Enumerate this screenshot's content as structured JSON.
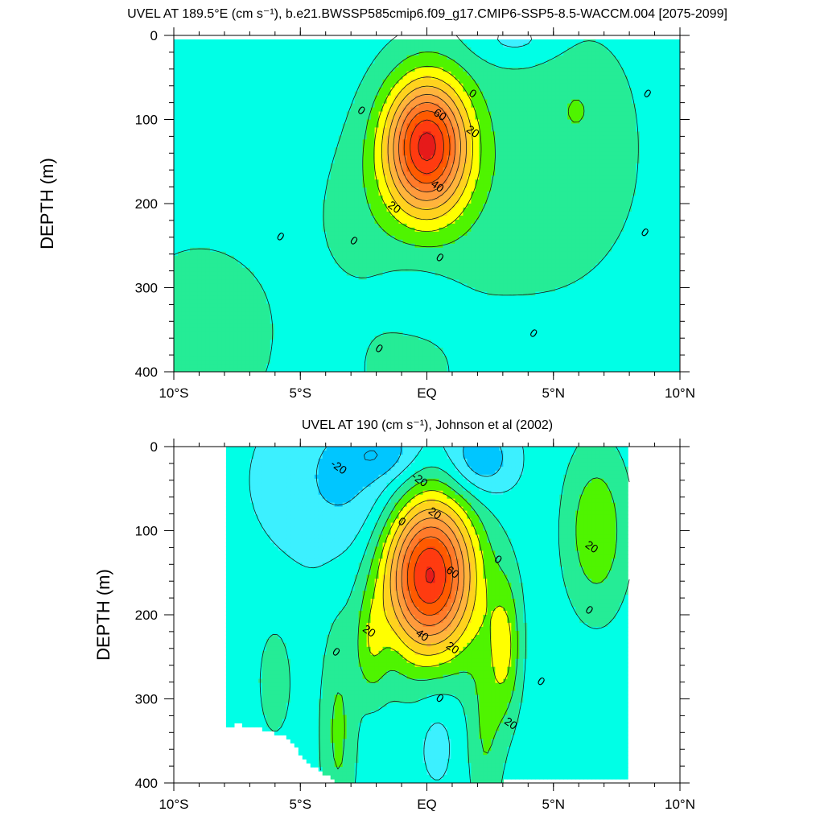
{
  "chart_data": [
    {
      "type": "contour",
      "title": "UVEL AT 189.5°E (cm s⁻¹), b.e21.BWSSP585cmip6.f09_g17.CMIP6-SSP5-8.5-WACCM.004 [2075-2099]",
      "ylabel": "DEPTH (m)",
      "xlabel": "",
      "xlim": [
        -10,
        10
      ],
      "ylim": [
        400,
        0
      ],
      "x_ticks": [
        {
          "v": -10,
          "label": "10°S"
        },
        {
          "v": -5,
          "label": "5°S"
        },
        {
          "v": 0,
          "label": "EQ"
        },
        {
          "v": 5,
          "label": "5°N"
        },
        {
          "v": 10,
          "label": "10°N"
        }
      ],
      "y_ticks": [
        {
          "v": 0,
          "label": "0"
        },
        {
          "v": 100,
          "label": "100"
        },
        {
          "v": 200,
          "label": "200"
        },
        {
          "v": 300,
          "label": "300"
        },
        {
          "v": 400,
          "label": "400"
        }
      ],
      "contour_interval": 10,
      "core": {
        "lat": 0.0,
        "depth": 120,
        "max": 85
      },
      "contour_labels": [
        {
          "lat": -2.6,
          "depth": 90,
          "text": "0"
        },
        {
          "lat": 1.8,
          "depth": 70,
          "text": "0"
        },
        {
          "lat": 8.7,
          "depth": 70,
          "text": "0"
        },
        {
          "lat": 0.5,
          "depth": 95,
          "text": "60"
        },
        {
          "lat": 1.8,
          "depth": 115,
          "text": "20"
        },
        {
          "lat": 0.4,
          "depth": 180,
          "text": "40"
        },
        {
          "lat": -1.3,
          "depth": 205,
          "text": "20"
        },
        {
          "lat": -5.8,
          "depth": 240,
          "text": "0"
        },
        {
          "lat": -2.9,
          "depth": 245,
          "text": "0"
        },
        {
          "lat": 0.5,
          "depth": 265,
          "text": "0"
        },
        {
          "lat": 8.6,
          "depth": 235,
          "text": "0"
        },
        {
          "lat": 4.2,
          "depth": 355,
          "text": "0"
        },
        {
          "lat": -1.9,
          "depth": 373,
          "text": "0"
        }
      ]
    },
    {
      "type": "contour",
      "title": "UVEL AT 190 (cm s⁻¹), Johnson et al (2002)",
      "ylabel": "DEPTH (m)",
      "xlabel": "",
      "xlim": [
        -10,
        10
      ],
      "ylim": [
        400,
        0
      ],
      "x_ticks": [
        {
          "v": -10,
          "label": "10°S"
        },
        {
          "v": -5,
          "label": "5°S"
        },
        {
          "v": 0,
          "label": "EQ"
        },
        {
          "v": 5,
          "label": "5°N"
        },
        {
          "v": 10,
          "label": "10°N"
        }
      ],
      "y_ticks": [
        {
          "v": 0,
          "label": "0"
        },
        {
          "v": 100,
          "label": "100"
        },
        {
          "v": 200,
          "label": "200"
        },
        {
          "v": 300,
          "label": "300"
        },
        {
          "v": 400,
          "label": "400"
        }
      ],
      "contour_interval": 10,
      "data_lat_range": [
        -8,
        8
      ],
      "core": {
        "lat": 0.1,
        "depth": 150,
        "max": 95
      },
      "contour_labels": [
        {
          "lat": -3.5,
          "depth": 25,
          "text": "-20"
        },
        {
          "lat": -0.3,
          "depth": 40,
          "text": "-20"
        },
        {
          "lat": 0.3,
          "depth": 80,
          "text": "20"
        },
        {
          "lat": -1.0,
          "depth": 90,
          "text": "0"
        },
        {
          "lat": 2.8,
          "depth": 135,
          "text": "0"
        },
        {
          "lat": 1.0,
          "depth": 150,
          "text": "60"
        },
        {
          "lat": 6.5,
          "depth": 120,
          "text": "20"
        },
        {
          "lat": 6.4,
          "depth": 195,
          "text": "0"
        },
        {
          "lat": -2.3,
          "depth": 220,
          "text": "20"
        },
        {
          "lat": -0.2,
          "depth": 225,
          "text": "40"
        },
        {
          "lat": 1.0,
          "depth": 240,
          "text": "20"
        },
        {
          "lat": -3.6,
          "depth": 245,
          "text": "0"
        },
        {
          "lat": 4.5,
          "depth": 280,
          "text": "0"
        },
        {
          "lat": 0.5,
          "depth": 300,
          "text": "0"
        },
        {
          "lat": 3.3,
          "depth": 330,
          "text": "20"
        }
      ]
    }
  ],
  "palette": {
    "-30": "#00c6ff",
    "-20": "#3cf0ff",
    "-10": "#00ffe6",
    "0": "#25ec96",
    "10": "#4ff400",
    "20": "#ffff00",
    "30": "#ffd21e",
    "40": "#ffb43c",
    "50": "#ff9a3c",
    "60": "#ff7a2a",
    "70": "#ff5a00",
    "80": "#ff3b10",
    "90": "#e61a1a"
  }
}
